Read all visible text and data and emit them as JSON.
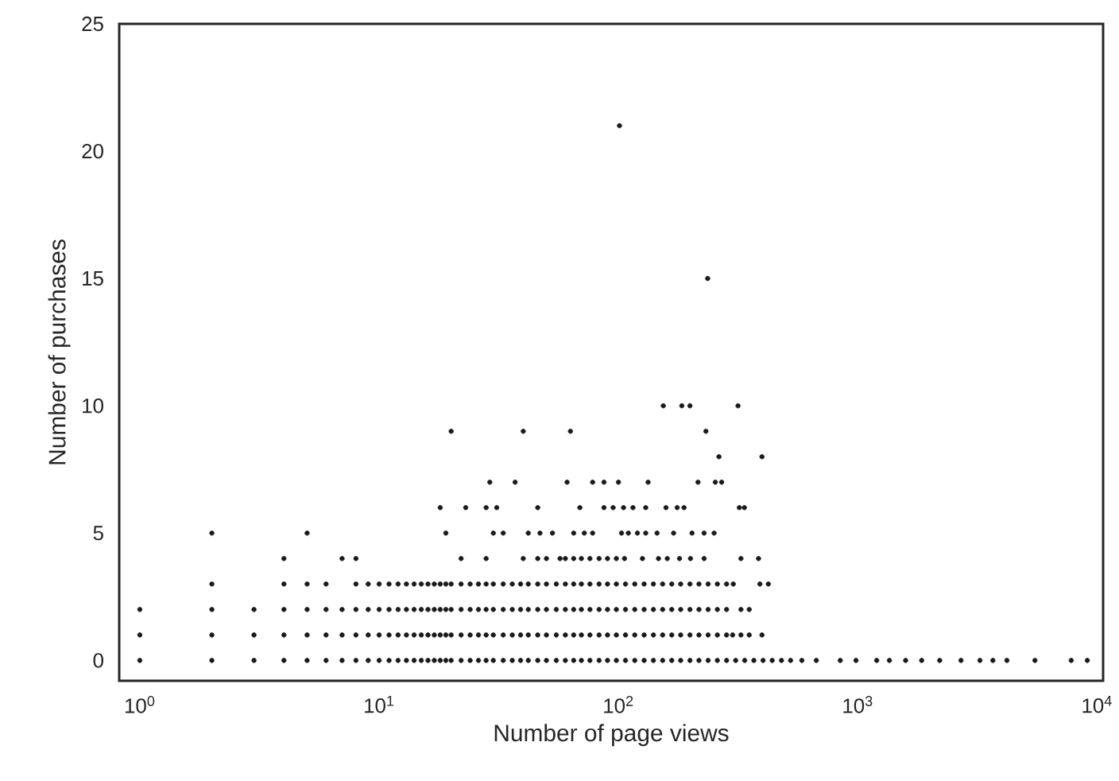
{
  "chart_data": {
    "type": "scatter",
    "xlabel": "Number of page views",
    "ylabel": "Number of purchases",
    "log": "x",
    "grid": false,
    "marker": "circle",
    "xlim": [
      0.82,
      10600
    ],
    "ylim": [
      -0.8,
      25
    ],
    "xticks": [
      {
        "value": 1,
        "label": "10$^{0}$"
      },
      {
        "value": 10,
        "label": "10$^{1}$"
      },
      {
        "value": 100,
        "label": "10$^{2}$"
      },
      {
        "value": 1000,
        "label": "10$^{3}$"
      },
      {
        "value": 10000,
        "label": "10$^{4}$"
      }
    ],
    "yticks": [
      0,
      5,
      10,
      15,
      20,
      25
    ],
    "series": [
      {
        "color": "#1a1a1a",
        "x": [
          1,
          2,
          3,
          4,
          5,
          6,
          7,
          8,
          9,
          10,
          11,
          12,
          13,
          14,
          15,
          16,
          17,
          18,
          19,
          20,
          22,
          24,
          26,
          28,
          30,
          33,
          36,
          39,
          42,
          46,
          50,
          55,
          60,
          65,
          70,
          76,
          83,
          90,
          98,
          107,
          117,
          128,
          140,
          153,
          167,
          182,
          199,
          217,
          237,
          259,
          283,
          309,
          337,
          368,
          402,
          439,
          480,
          524,
          584,
          671,
          845,
          983,
          1200,
          1356,
          1585,
          1850,
          2200,
          2700,
          3240,
          3670,
          4200,
          5500,
          7800,
          9100
        ],
        "values": [
          0,
          0,
          0,
          0,
          0,
          0,
          0,
          0,
          0,
          0,
          0,
          0,
          0,
          0,
          0,
          0,
          0,
          0,
          0,
          0,
          0,
          0,
          0,
          0,
          0,
          0,
          0,
          0,
          0,
          0,
          0,
          0,
          0,
          0,
          0,
          0,
          0,
          0,
          0,
          0,
          0,
          0,
          0,
          0,
          0,
          0,
          0,
          0,
          0,
          0,
          0,
          0,
          0,
          0,
          0,
          0,
          0,
          0,
          0,
          0,
          0,
          0,
          0,
          0,
          0,
          0,
          0,
          0,
          0,
          0,
          0,
          0,
          0,
          0
        ]
      },
      {
        "color": "#1a1a1a",
        "x": [
          1,
          2,
          3,
          4,
          5,
          6,
          7,
          8,
          9,
          10,
          11,
          12,
          13,
          14,
          15,
          16,
          17,
          18,
          19,
          20,
          22,
          24,
          26,
          28,
          30,
          33,
          36,
          39,
          42,
          46,
          50,
          55,
          60,
          65,
          70,
          76,
          83,
          90,
          98,
          107,
          117,
          128,
          140,
          153,
          167,
          182,
          199,
          217,
          237,
          259,
          283,
          300,
          325,
          352,
          398
        ],
        "values": [
          1,
          1,
          1,
          1,
          1,
          1,
          1,
          1,
          1,
          1,
          1,
          1,
          1,
          1,
          1,
          1,
          1,
          1,
          1,
          1,
          1,
          1,
          1,
          1,
          1,
          1,
          1,
          1,
          1,
          1,
          1,
          1,
          1,
          1,
          1,
          1,
          1,
          1,
          1,
          1,
          1,
          1,
          1,
          1,
          1,
          1,
          1,
          1,
          1,
          1,
          1,
          1,
          1,
          1,
          1
        ]
      },
      {
        "color": "#1a1a1a",
        "x": [
          1,
          2,
          3,
          4,
          5,
          6,
          7,
          8,
          9,
          10,
          11,
          12,
          13,
          14,
          15,
          16,
          17,
          18,
          19,
          20,
          22,
          24,
          26,
          28,
          30,
          33,
          36,
          39,
          42,
          46,
          50,
          55,
          60,
          65,
          70,
          76,
          83,
          90,
          98,
          107,
          117,
          128,
          140,
          153,
          167,
          182,
          199,
          217,
          237,
          259,
          283,
          325,
          352
        ],
        "values": [
          2,
          2,
          2,
          2,
          2,
          2,
          2,
          2,
          2,
          2,
          2,
          2,
          2,
          2,
          2,
          2,
          2,
          2,
          2,
          2,
          2,
          2,
          2,
          2,
          2,
          2,
          2,
          2,
          2,
          2,
          2,
          2,
          2,
          2,
          2,
          2,
          2,
          2,
          2,
          2,
          2,
          2,
          2,
          2,
          2,
          2,
          2,
          2,
          2,
          2,
          2,
          2,
          2
        ]
      },
      {
        "color": "#1a1a1a",
        "x": [
          2,
          4,
          5,
          6,
          8,
          9,
          10,
          11,
          12,
          13,
          14,
          15,
          16,
          17,
          18,
          19,
          20,
          22,
          24,
          26,
          28,
          30,
          33,
          36,
          39,
          42,
          46,
          50,
          55,
          60,
          65,
          70,
          76,
          83,
          90,
          98,
          107,
          117,
          128,
          140,
          153,
          167,
          182,
          199,
          217,
          237,
          259,
          283,
          302,
          390,
          423
        ],
        "values": [
          3,
          3,
          3,
          3,
          3,
          3,
          3,
          3,
          3,
          3,
          3,
          3,
          3,
          3,
          3,
          3,
          3,
          3,
          3,
          3,
          3,
          3,
          3,
          3,
          3,
          3,
          3,
          3,
          3,
          3,
          3,
          3,
          3,
          3,
          3,
          3,
          3,
          3,
          3,
          3,
          3,
          3,
          3,
          3,
          3,
          3,
          3,
          3,
          3,
          3,
          3
        ]
      },
      {
        "color": "#1a1a1a",
        "x": [
          4,
          7,
          8,
          22,
          28,
          40,
          46,
          50,
          57,
          60,
          65,
          70,
          76,
          83,
          90,
          98,
          106,
          126,
          147,
          160,
          180,
          200,
          228,
          325,
          385
        ],
        "values": [
          4,
          4,
          4,
          4,
          4,
          4,
          4,
          4,
          4,
          4,
          4,
          4,
          4,
          4,
          4,
          4,
          4,
          4,
          4,
          4,
          4,
          4,
          4,
          4,
          4
        ]
      },
      {
        "color": "#1a1a1a",
        "x": [
          2,
          5,
          19,
          30,
          33,
          42,
          47,
          53,
          65,
          72,
          78,
          103,
          110,
          120,
          130,
          145,
          170,
          203,
          228,
          251
        ],
        "values": [
          5,
          5,
          5,
          5,
          5,
          5,
          5,
          5,
          5,
          5,
          5,
          5,
          5,
          5,
          5,
          5,
          5,
          5,
          5,
          5
        ]
      },
      {
        "color": "#1a1a1a",
        "x": [
          18,
          23,
          28,
          31,
          46,
          69,
          87,
          95,
          105,
          115,
          130,
          158,
          176,
          188,
          320,
          336
        ],
        "values": [
          6,
          6,
          6,
          6,
          6,
          6,
          6,
          6,
          6,
          6,
          6,
          6,
          6,
          6,
          6,
          6
        ]
      },
      {
        "color": "#1a1a1a",
        "x": [
          29,
          37,
          61,
          78,
          87,
          100,
          133,
          215,
          254,
          270
        ],
        "values": [
          7,
          7,
          7,
          7,
          7,
          7,
          7,
          7,
          7,
          7
        ]
      },
      {
        "color": "#1a1a1a",
        "x": [
          263,
          398
        ],
        "values": [
          8,
          8
        ]
      },
      {
        "color": "#1a1a1a",
        "x": [
          20,
          40,
          63,
          232
        ],
        "values": [
          9,
          9,
          9,
          9
        ]
      },
      {
        "color": "#1a1a1a",
        "x": [
          154,
          184,
          199,
          316
        ],
        "values": [
          10,
          10,
          10,
          10
        ]
      },
      {
        "color": "#1a1a1a",
        "x": [
          236
        ],
        "values": [
          15
        ]
      },
      {
        "color": "#1a1a1a",
        "x": [
          101
        ],
        "values": [
          21
        ]
      }
    ]
  }
}
